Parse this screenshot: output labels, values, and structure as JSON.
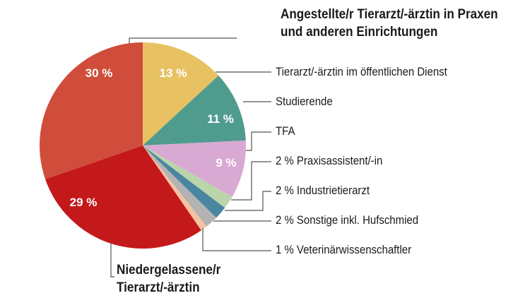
{
  "chart_data": {
    "type": "pie",
    "title": "",
    "slices": [
      {
        "label": "Tierarzt/-ärztin im öffentlichen Dienst",
        "value": 13,
        "value_label": "13 %",
        "color": "#e8c262"
      },
      {
        "label": "Studierende",
        "value": 11,
        "value_label": "11 %",
        "color": "#4f9c8f"
      },
      {
        "label": "TFA",
        "value": 9,
        "value_label": "9 %",
        "color": "#d8a9d2"
      },
      {
        "label": "2 % Praxisassistent/-in",
        "value": 2,
        "value_label": "",
        "color": "#b9d5a9"
      },
      {
        "label": "2 % Industrietierarzt",
        "value": 2,
        "value_label": "",
        "color": "#4a86a0"
      },
      {
        "label": "2 % Sonstige inkl. Hufschmied",
        "value": 2,
        "value_label": "",
        "color": "#b3b3b3"
      },
      {
        "label": "1 % Veterinärwissenschaftler",
        "value": 1,
        "value_label": "",
        "color": "#f7c2a2"
      },
      {
        "label": "Niedergelassene/r Tierarzt/-ärztin",
        "value": 29,
        "value_label": "29 %",
        "color": "#c4191b"
      },
      {
        "label": "Angestellte/r Tierarzt/-ärztin in Praxen und anderen Einrichtungen",
        "value": 30,
        "value_label": "30 %",
        "color": "#d04d3b"
      }
    ],
    "legend_placement": "right (leader lines)"
  }
}
